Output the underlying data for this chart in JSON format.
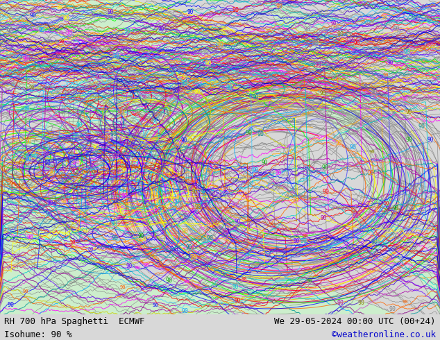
{
  "title_left": "RH 700 hPa Spaghetti  ECMWF",
  "title_right": "We 29-05-2024 00:00 UTC (00+24)",
  "subtitle_left": "Isohume: 90 %",
  "subtitle_right": "©weatheronline.co.uk",
  "subtitle_right_color": "#0000cc",
  "text_color": "#000000",
  "font_size_title": 9,
  "font_size_subtitle": 9,
  "figsize": [
    6.34,
    4.9
  ],
  "dpi": 100,
  "map_bg_color": "#d8d8d8",
  "sea_color": "#d8d8d8",
  "land_color_light": "#cceecc",
  "land_color_medium": "#aaddaa",
  "background_hex": "#d8d8d8",
  "line_colors_main": [
    "#808080",
    "#a0a0a0",
    "#606060",
    "#909090",
    "#707070",
    "#ff00ff",
    "#cc00cc",
    "#ff44ff",
    "#ff0000",
    "#cc0000",
    "#ff4444",
    "#ffaa00",
    "#ff8800",
    "#ffcc00",
    "#00aaff",
    "#0088cc",
    "#44ccff",
    "#aa00aa",
    "#880088",
    "#cc44cc",
    "#ffff00",
    "#cccc00",
    "#00cccc",
    "#009999",
    "#ff6600",
    "#cc4400",
    "#6600ff",
    "#4400cc",
    "#0000ff",
    "#0000cc",
    "#4444ff",
    "#00aa00",
    "#008800",
    "#44cc44",
    "#888800",
    "#666600",
    "#008888",
    "#006666",
    "#880000",
    "#660000",
    "#004488",
    "#002266"
  ],
  "num_members": 51
}
